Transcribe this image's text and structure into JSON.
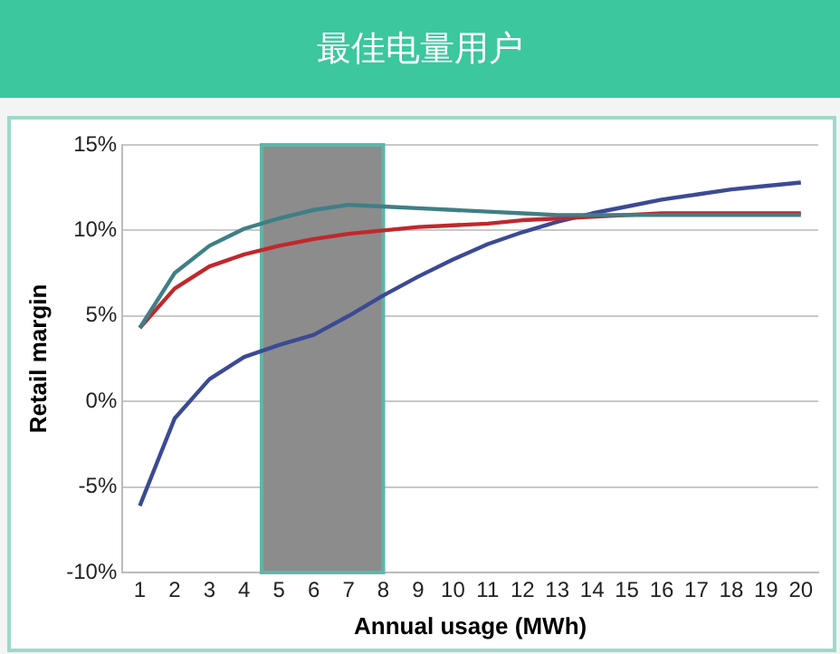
{
  "chart_data": {
    "type": "line",
    "title": "最佳电量用户",
    "xlabel": "Annual usage (MWh)",
    "ylabel": "Retail margin",
    "x": [
      1,
      2,
      3,
      4,
      5,
      6,
      7,
      8,
      9,
      10,
      11,
      12,
      13,
      14,
      15,
      16,
      17,
      18,
      19,
      20
    ],
    "series": [
      {
        "color": "#3f7f86",
        "values": [
          4.3,
          7.5,
          9.1,
          10.1,
          10.7,
          11.2,
          11.5,
          11.4,
          11.3,
          11.2,
          11.1,
          11.0,
          10.9,
          10.9,
          10.9,
          10.9,
          10.9,
          10.9,
          10.9,
          10.9
        ]
      },
      {
        "color": "#c0282d",
        "values": [
          4.3,
          6.6,
          7.9,
          8.6,
          9.1,
          9.5,
          9.8,
          10.0,
          10.2,
          10.3,
          10.4,
          10.6,
          10.7,
          10.8,
          10.9,
          11.0,
          11.0,
          11.0,
          11.0,
          11.0
        ]
      },
      {
        "color": "#3c4a94",
        "values": [
          -6.1,
          -1.0,
          1.3,
          2.6,
          3.3,
          3.9,
          5.0,
          6.2,
          7.3,
          8.3,
          9.2,
          9.9,
          10.5,
          11.0,
          11.4,
          11.8,
          12.1,
          12.4,
          12.6,
          12.8
        ]
      }
    ],
    "xlim": [
      0.5,
      20.5
    ],
    "xticks": [
      1,
      2,
      3,
      4,
      5,
      6,
      7,
      8,
      9,
      10,
      11,
      12,
      13,
      14,
      15,
      16,
      17,
      18,
      19,
      20
    ],
    "ylim": [
      -10,
      15
    ],
    "yticks": [
      {
        "value": -10,
        "label": "-10%"
      },
      {
        "value": -5,
        "label": "-5%"
      },
      {
        "value": 0,
        "label": "0%"
      },
      {
        "value": 5,
        "label": "5%"
      },
      {
        "value": 10,
        "label": "10%"
      },
      {
        "value": 15,
        "label": "15%"
      }
    ],
    "bands": [
      {
        "axis": "x",
        "from": 4.5,
        "to": 8,
        "color": "#8c8c8c"
      }
    ],
    "grid": "y",
    "legend": false,
    "marker": "none",
    "line_style": "solid"
  }
}
